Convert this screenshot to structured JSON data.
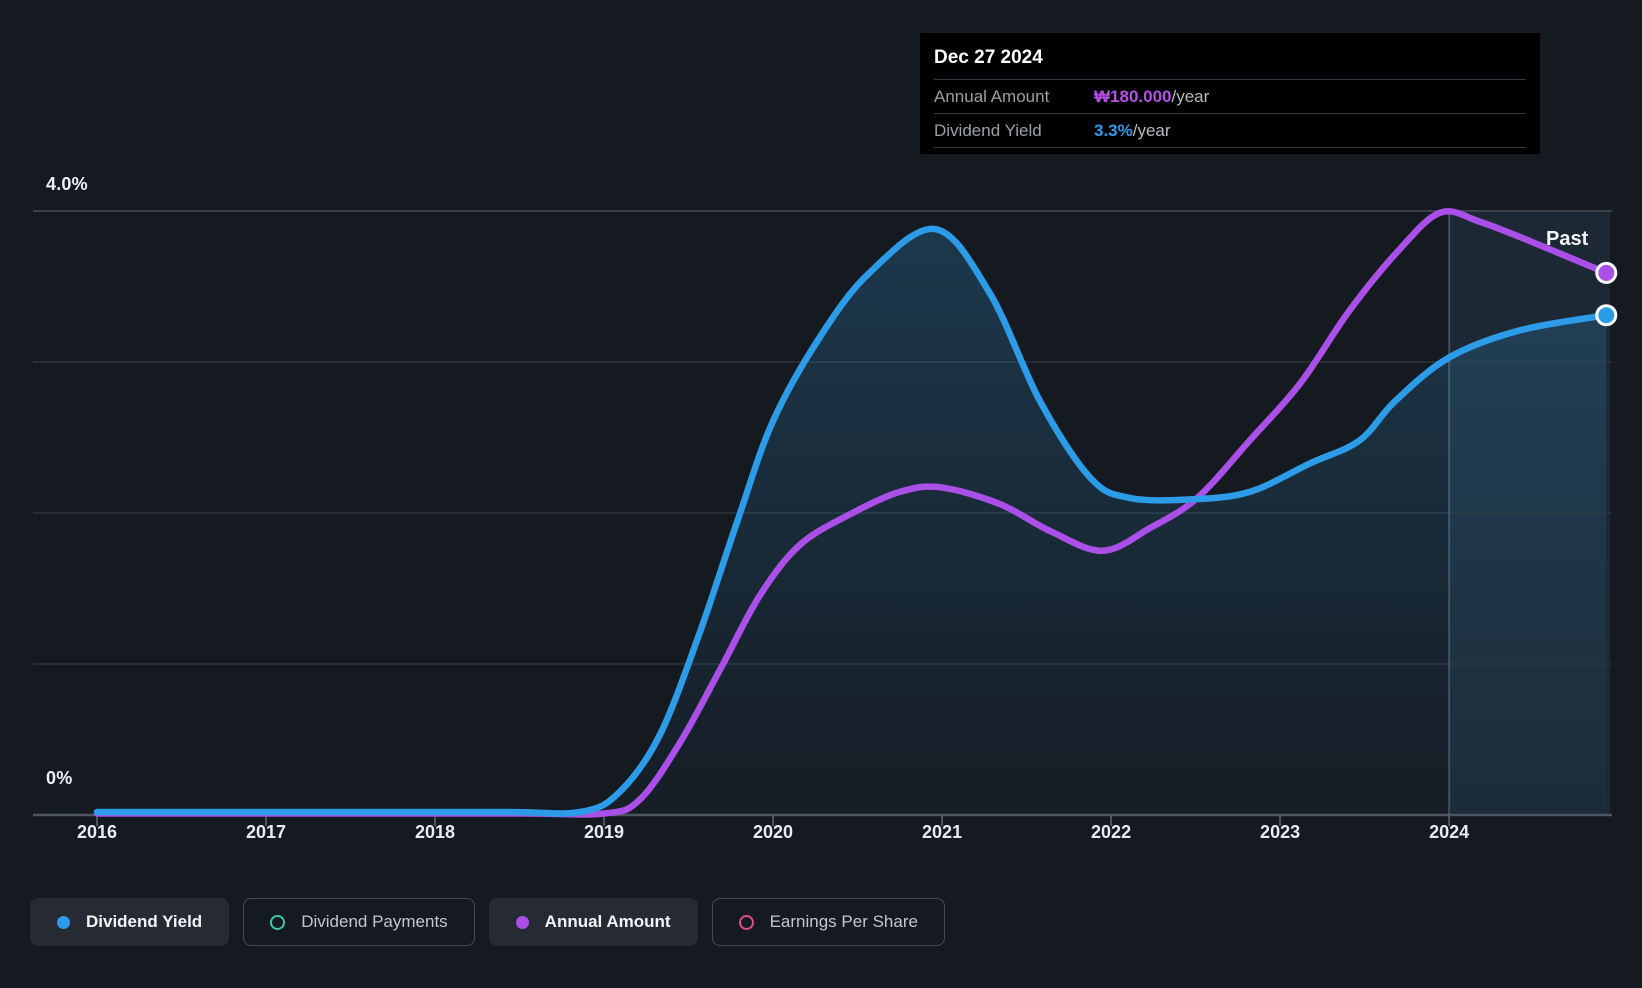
{
  "tooltip": {
    "date": "Dec 27 2024",
    "rows": [
      {
        "label": "Annual Amount",
        "value": "₩180.000",
        "suffix": "/year",
        "value_color": "#b44fe8"
      },
      {
        "label": "Dividend Yield",
        "value": "3.3%",
        "suffix": "/year",
        "value_color": "#2d9ce8"
      }
    ]
  },
  "labels": {
    "past": "Past",
    "y_top": "4.0%",
    "y_bottom": "0%"
  },
  "legend": [
    {
      "label": "Dividend Yield",
      "marker": "filled",
      "color": "#2d9ce8",
      "active": true
    },
    {
      "label": "Dividend Payments",
      "marker": "ring",
      "color": "#3fc4b4",
      "active": false
    },
    {
      "label": "Annual Amount",
      "marker": "filled",
      "color": "#aa4fe8",
      "active": true
    },
    {
      "label": "Earnings Per Share",
      "marker": "ring",
      "color": "#df4b86",
      "active": false
    }
  ],
  "chart_data": {
    "type": "area",
    "title": "Dividend history: yield and annual amount over time",
    "xlim": [
      2016,
      2024.952
    ],
    "ylim": [
      0,
      4
    ],
    "x_ticks": [
      2016,
      2017,
      2018,
      2019,
      2020,
      2021,
      2022,
      2023,
      2024
    ],
    "y_gridlines_pct": [
      0,
      1,
      2,
      3,
      4
    ],
    "y_axis_labels": {
      "top": "4.0% at 4",
      "bottom": "0% at 0"
    },
    "legend_position": "bottom-left",
    "past_divider_x": 2024.0,
    "highlight_band": [
      2024.0,
      2024.952
    ],
    "colors": {
      "grid": "#272d36",
      "grid_top": "#3a414c",
      "baseline": "#4d5560",
      "band": "rgba(100,180,235,0.10)",
      "divider": "rgba(150,190,220,0.28)",
      "fill_top": "rgba(45,125,175,0.30)",
      "fill_bottom": "rgba(45,125,175,0.03)"
    },
    "series": [
      {
        "name": "Annual Amount",
        "color": "#aa4fe8",
        "fill": false,
        "end_marker": true,
        "unit_note": "KRW per year (₩180.000/year at Dec 27 2024), rendered against the yield axis scale",
        "points": [
          [
            2016.0,
            0.01
          ],
          [
            2017.2,
            0.01
          ],
          [
            2018.5,
            0.01
          ],
          [
            2019.0,
            0.01
          ],
          [
            2019.21,
            0.1
          ],
          [
            2019.45,
            0.48
          ],
          [
            2019.69,
            0.97
          ],
          [
            2019.92,
            1.45
          ],
          [
            2020.16,
            1.79
          ],
          [
            2020.47,
            2.0
          ],
          [
            2020.75,
            2.14
          ],
          [
            2020.99,
            2.17
          ],
          [
            2021.34,
            2.06
          ],
          [
            2021.64,
            1.88
          ],
          [
            2021.95,
            1.75
          ],
          [
            2022.23,
            1.9
          ],
          [
            2022.51,
            2.1
          ],
          [
            2022.82,
            2.48
          ],
          [
            2023.12,
            2.86
          ],
          [
            2023.41,
            3.34
          ],
          [
            2023.71,
            3.75
          ],
          [
            2023.95,
            3.99
          ],
          [
            2024.18,
            3.93
          ],
          [
            2024.48,
            3.8
          ],
          [
            2024.93,
            3.59
          ]
        ]
      },
      {
        "name": "Dividend Yield",
        "color": "#2d9ce8",
        "fill": true,
        "end_marker": true,
        "unit_note": "percent per year",
        "points": [
          [
            2016.0,
            0.02
          ],
          [
            2017.2,
            0.02
          ],
          [
            2018.4,
            0.02
          ],
          [
            2018.86,
            0.02
          ],
          [
            2019.09,
            0.15
          ],
          [
            2019.33,
            0.53
          ],
          [
            2019.57,
            1.22
          ],
          [
            2019.79,
            1.95
          ],
          [
            2020.0,
            2.61
          ],
          [
            2020.28,
            3.17
          ],
          [
            2020.57,
            3.59
          ],
          [
            2020.96,
            3.88
          ],
          [
            2021.28,
            3.46
          ],
          [
            2021.58,
            2.74
          ],
          [
            2021.88,
            2.23
          ],
          [
            2022.11,
            2.1
          ],
          [
            2022.47,
            2.09
          ],
          [
            2022.82,
            2.14
          ],
          [
            2023.18,
            2.33
          ],
          [
            2023.47,
            2.48
          ],
          [
            2023.68,
            2.74
          ],
          [
            2024.0,
            3.03
          ],
          [
            2024.42,
            3.21
          ],
          [
            2024.93,
            3.31
          ]
        ]
      }
    ]
  }
}
